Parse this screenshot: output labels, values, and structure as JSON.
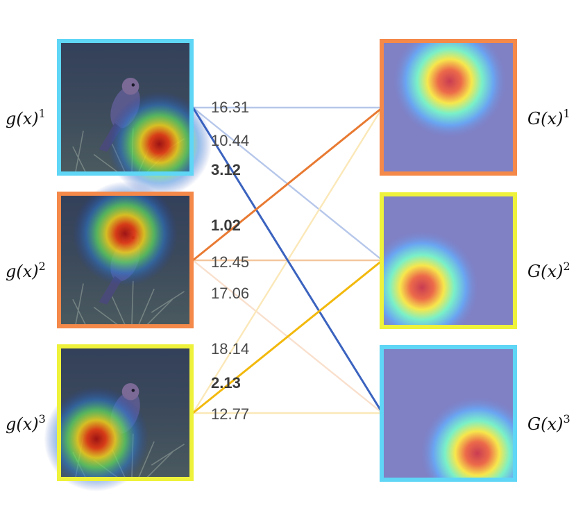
{
  "left_labels": [
    "g(x)",
    "g(x)",
    "g(x)"
  ],
  "right_labels": [
    "G(x)",
    "G(x)",
    "G(x)"
  ],
  "superscripts": [
    "1",
    "2",
    "3"
  ],
  "colors": {
    "cyan": "#5fd6f6",
    "orange": "#f4894a",
    "yellow": "#eef23a",
    "strong_blue": "#3b63bf",
    "light_blue": "#b6c7ea",
    "strong_orange": "#e87a32",
    "light_orange": "#f4c79e",
    "pale_orange": "#f9e0cd",
    "strong_yellow": "#f2b90d",
    "pale_yellow": "#fbe8b8"
  },
  "left_frames": [
    "cyan",
    "orange",
    "yellow"
  ],
  "right_frames": [
    "orange",
    "yellow",
    "cyan"
  ],
  "edges": [
    {
      "from": 1,
      "to": 1,
      "value": "16.31",
      "bold": false,
      "color": "light_blue"
    },
    {
      "from": 1,
      "to": 2,
      "value": "10.44",
      "bold": false,
      "color": "light_blue"
    },
    {
      "from": 1,
      "to": 3,
      "value": "3.12",
      "bold": true,
      "color": "strong_blue"
    },
    {
      "from": 2,
      "to": 1,
      "value": "1.02",
      "bold": true,
      "color": "strong_orange"
    },
    {
      "from": 2,
      "to": 2,
      "value": "12.45",
      "bold": false,
      "color": "light_orange"
    },
    {
      "from": 2,
      "to": 3,
      "value": "17.06",
      "bold": false,
      "color": "pale_orange"
    },
    {
      "from": 3,
      "to": 1,
      "value": "18.14",
      "bold": false,
      "color": "pale_yellow"
    },
    {
      "from": 3,
      "to": 2,
      "value": "2.13",
      "bold": true,
      "color": "strong_yellow"
    },
    {
      "from": 3,
      "to": 3,
      "value": "12.77",
      "bold": false,
      "color": "pale_yellow"
    }
  ]
}
